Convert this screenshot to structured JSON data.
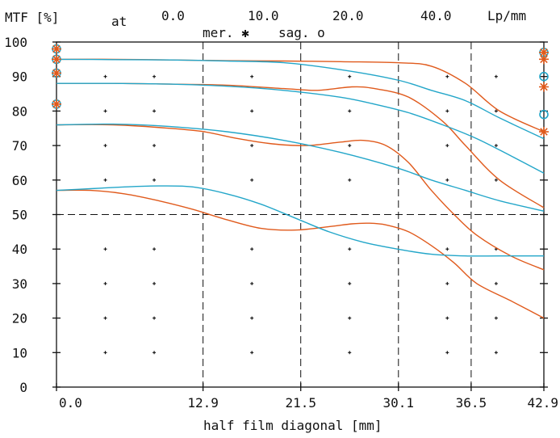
{
  "header": {
    "mtf_label": "MTF [%]",
    "at_label": "at",
    "freq_labels": [
      "0.0",
      "10.0",
      "20.0",
      "40.0"
    ],
    "unit_label": "Lp/mm",
    "mer_label": "mer. ✱",
    "sag_label": "sag. o"
  },
  "chart_data": {
    "type": "line",
    "title": "",
    "xlabel": "half film diagonal [mm]",
    "ylabel": "MTF [%]",
    "xlim": [
      0,
      42.9
    ],
    "ylim": [
      0,
      100
    ],
    "x_ticks": [
      0.0,
      12.9,
      21.5,
      30.1,
      36.5,
      42.9
    ],
    "x_tick_labels": [
      "0.0",
      "12.9",
      "21.5",
      "30.1",
      "36.5",
      "42.9"
    ],
    "y_ticks": [
      0,
      10,
      20,
      30,
      40,
      50,
      60,
      70,
      80,
      90,
      100
    ],
    "y_tick_labels": [
      "0",
      "10",
      "20",
      "30",
      "40",
      "50",
      "60",
      "70",
      "80",
      "90",
      "100"
    ],
    "dashed_x": [
      12.9,
      21.5,
      30.1,
      36.5
    ],
    "dashed_y": [
      50
    ],
    "dot_grid_x": [
      4.3,
      8.6,
      17.2,
      25.8,
      34.4,
      38.7
    ],
    "dot_grid_y": [
      10,
      20,
      30,
      40,
      60,
      70,
      80,
      90
    ],
    "colors": {
      "mer": "#e05a1c",
      "sag": "#23a6c9",
      "axis": "#111111"
    },
    "series": [
      {
        "type": "mer",
        "x": [
          0,
          5,
          10,
          15,
          20,
          25,
          30,
          33,
          36,
          39,
          42.9
        ],
        "y": [
          95,
          95,
          94.8,
          94.6,
          94.5,
          94.3,
          94,
          93,
          88,
          80,
          74
        ]
      },
      {
        "type": "sag",
        "x": [
          0,
          5,
          10,
          15,
          20,
          25,
          30,
          33,
          36,
          39,
          42.9
        ],
        "y": [
          95,
          94.9,
          94.8,
          94.5,
          94,
          92,
          89,
          86,
          83,
          78,
          72
        ]
      },
      {
        "type": "mer",
        "x": [
          0,
          5,
          10,
          15,
          20,
          23,
          26,
          28,
          31,
          34,
          36,
          39,
          42.9
        ],
        "y": [
          88,
          88,
          87.8,
          87.5,
          86.5,
          86,
          87,
          86.5,
          84,
          77,
          70,
          60,
          52
        ]
      },
      {
        "type": "sag",
        "x": [
          0,
          5,
          10,
          15,
          20,
          25,
          28,
          31,
          34,
          37,
          40,
          42.9
        ],
        "y": [
          88,
          88,
          87.8,
          87.2,
          86,
          84,
          82,
          79.5,
          76,
          72,
          67,
          62
        ]
      },
      {
        "type": "mer",
        "x": [
          0,
          5,
          10,
          13,
          16,
          19,
          22,
          25,
          27,
          29,
          31,
          33,
          35,
          37,
          40,
          42.9
        ],
        "y": [
          76,
          76,
          75,
          74,
          72,
          70.5,
          70,
          71,
          71.5,
          70,
          65,
          57,
          50,
          44,
          38,
          34
        ]
      },
      {
        "type": "sag",
        "x": [
          0,
          5,
          10,
          15,
          20,
          25,
          30,
          33,
          36,
          39,
          42.9
        ],
        "y": [
          76,
          76.2,
          75.5,
          74,
          71.5,
          68,
          63.5,
          60,
          57,
          54,
          51
        ]
      },
      {
        "type": "mer",
        "x": [
          0,
          3,
          6,
          9,
          12,
          15,
          18,
          21,
          24,
          26,
          27.5,
          29,
          31,
          33,
          35,
          37,
          40,
          42.9
        ],
        "y": [
          57,
          57,
          56,
          54,
          51.5,
          48.5,
          46,
          45.5,
          46.5,
          47.3,
          47.5,
          47,
          45,
          41,
          36,
          30,
          25,
          20
        ]
      },
      {
        "type": "sag",
        "x": [
          0,
          3,
          6,
          9,
          12,
          15,
          18,
          21,
          24,
          27,
          30,
          33,
          36,
          39,
          42.9
        ],
        "y": [
          57,
          57.5,
          58,
          58.3,
          58,
          56,
          53,
          49,
          45,
          42,
          40,
          38.5,
          38,
          38,
          38
        ]
      }
    ],
    "left_markers": [
      {
        "y": 98,
        "mer": true,
        "sag": true
      },
      {
        "y": 95,
        "mer": true,
        "sag": true
      },
      {
        "y": 91,
        "mer": true,
        "sag": true
      },
      {
        "y": 82,
        "mer": true,
        "sag": true
      }
    ],
    "right_markers": [
      {
        "y": 97,
        "mer": true,
        "sag": true
      },
      {
        "y": 95,
        "mer": true,
        "sag": false
      },
      {
        "y": 90,
        "mer": false,
        "sag": true
      },
      {
        "y": 87,
        "mer": true,
        "sag": false
      },
      {
        "y": 79,
        "mer": false,
        "sag": true
      },
      {
        "y": 74,
        "mer": true,
        "sag": false
      }
    ]
  }
}
